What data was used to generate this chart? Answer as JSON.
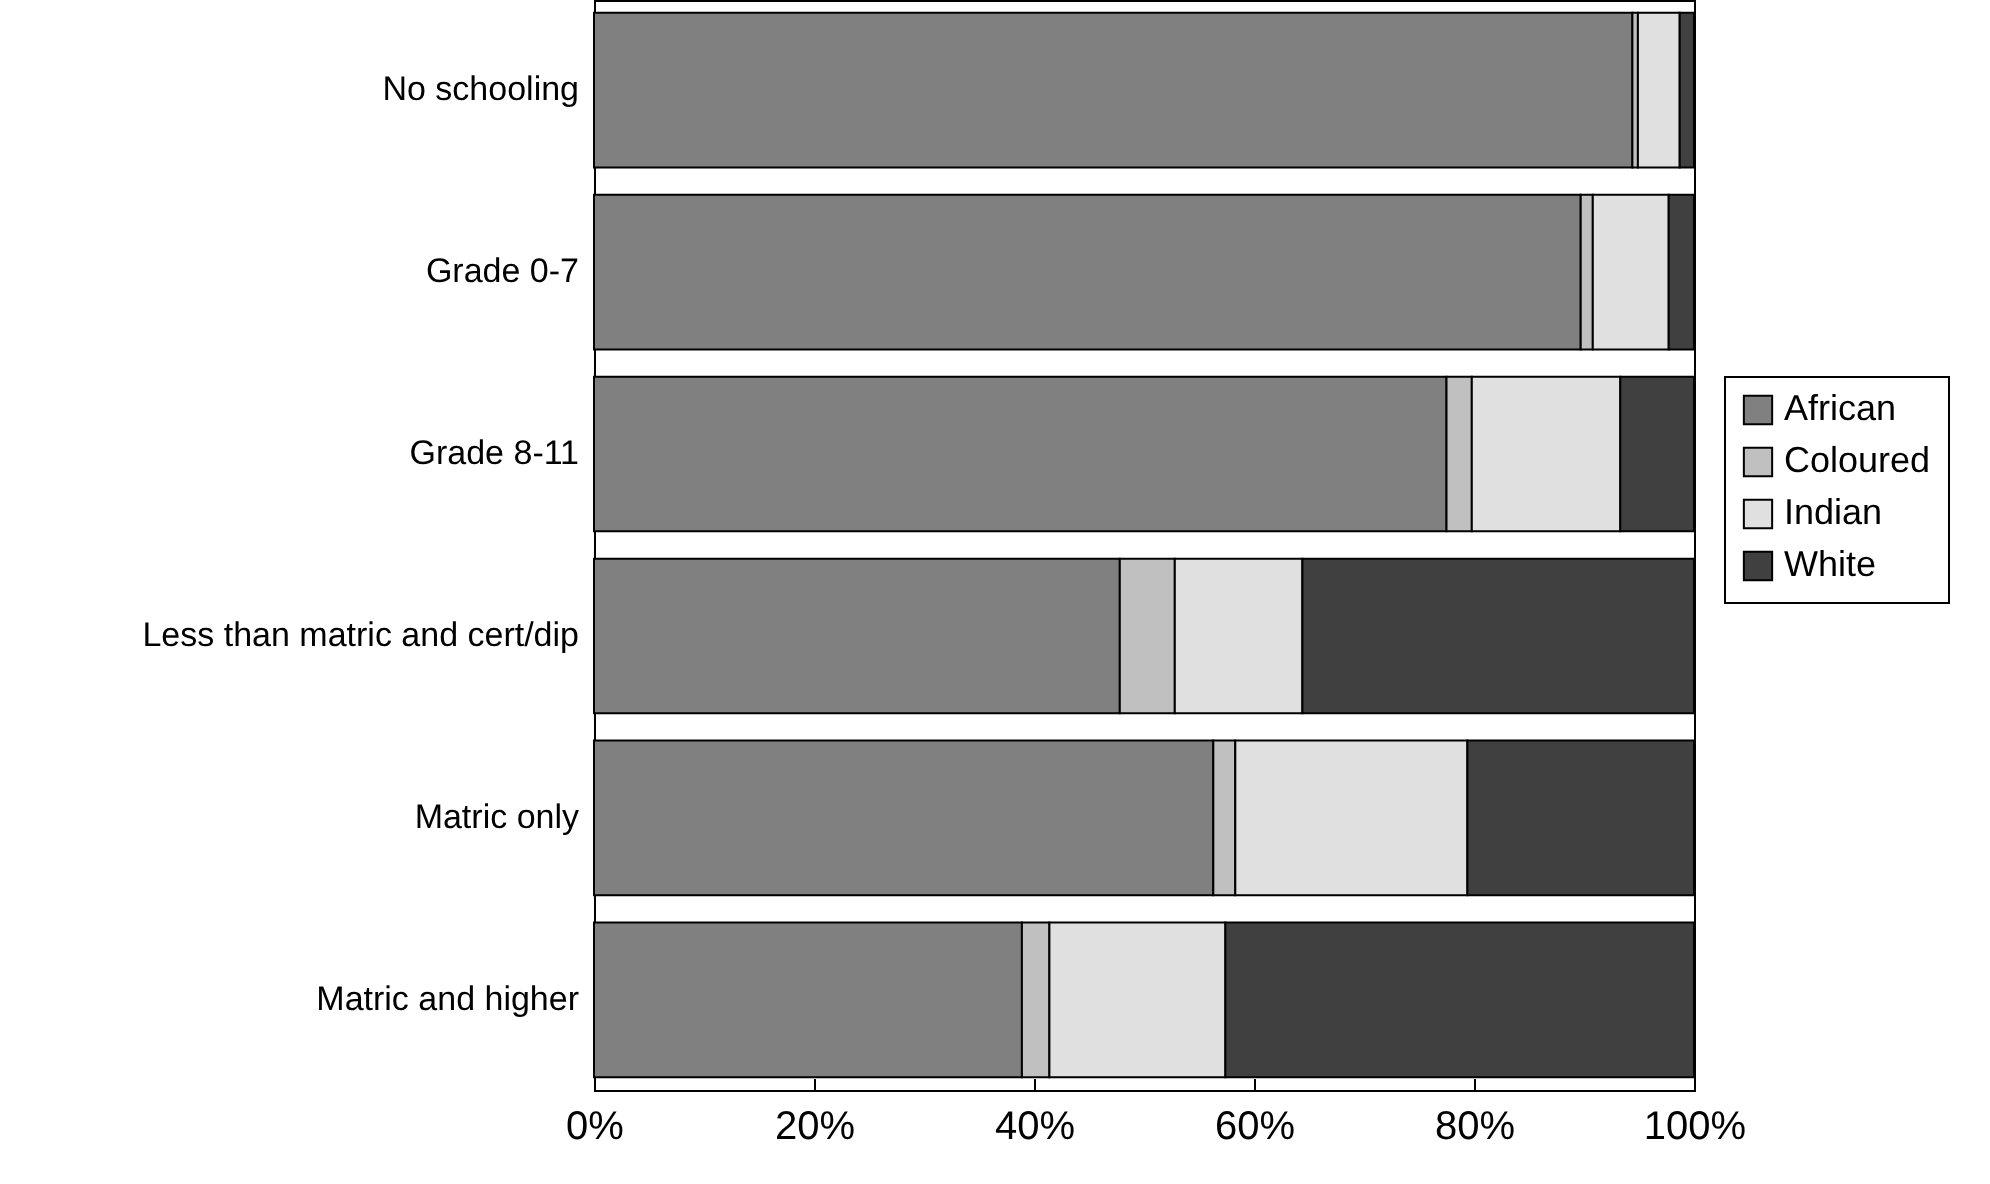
{
  "chart_data": {
    "type": "bar",
    "orientation": "horizontal",
    "stacked": true,
    "categories": [
      "No schooling",
      "Grade 0-7",
      "Grade 8-11",
      "Less than matric and cert/dip",
      "Matric only",
      "Matric and higher"
    ],
    "series": [
      {
        "name": "African",
        "color": "#808080",
        "values": [
          94.4,
          89.7,
          77.5,
          47.8,
          56.3,
          38.9
        ]
      },
      {
        "name": "Coloured",
        "color": "#c0c0c0",
        "values": [
          0.5,
          1.1,
          2.3,
          5.0,
          2.0,
          2.5
        ]
      },
      {
        "name": "Indian",
        "color": "#e0e0e0",
        "values": [
          3.8,
          6.9,
          13.5,
          11.6,
          21.1,
          16.0
        ]
      },
      {
        "name": "White",
        "color": "#404040",
        "values": [
          1.3,
          2.3,
          6.7,
          35.6,
          20.6,
          42.6
        ]
      }
    ],
    "xlim": [
      0,
      100
    ],
    "xticks": [
      {
        "value": 0,
        "label": "0%"
      },
      {
        "value": 20,
        "label": "20%"
      },
      {
        "value": 40,
        "label": "40%"
      },
      {
        "value": 60,
        "label": "60%"
      },
      {
        "value": 80,
        "label": "80%"
      },
      {
        "value": 100,
        "label": "100%"
      }
    ],
    "legend": "right",
    "grid": false
  }
}
